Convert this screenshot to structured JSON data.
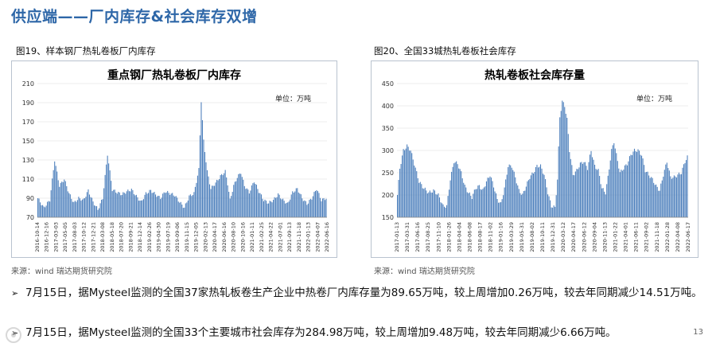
{
  "slide": {
    "title": "供应端——厂内库存&社会库存双增",
    "page_number": "13"
  },
  "left_figure": {
    "caption": "图19、样本钢厂热轧卷板厂内库存",
    "source": "来源：wind  瑞达期货研究院"
  },
  "right_figure": {
    "caption": "图20、全国33城热轧卷板社会库存",
    "source": "来源：wind  瑞达期货研究院"
  },
  "bullets": [
    "7月15日，据Mysteel监测的全国37家热轧板卷生产企业中热卷厂内库存量为89.65万吨，较上周增加0.26万吨，较去年同期减少14.51万吨。",
    "7月15日，据Mysteel监测的全国33个主要城市社会库存为284.98万吨，较上周增加9.48万吨，较去年同期减少6.66万吨。"
  ],
  "chart_data": [
    {
      "type": "bar",
      "title": "重点钢厂热轧卷板厂内库存",
      "unit_label": "单位：万吨",
      "ylim": [
        70,
        210
      ],
      "yticks": [
        70,
        90,
        110,
        130,
        150,
        170,
        190,
        210
      ],
      "grid": true,
      "bar_color": "#4f81bd",
      "x_tick_labels": [
        "2016-10-14",
        "2016-12-16",
        "2017-03-03",
        "2017-05-05",
        "2017-08-03",
        "2017-10-12",
        "2017-12-21",
        "2018-03-08",
        "2018-05-18",
        "2018-07-20",
        "2018-09-21",
        "2018-12-14",
        "2019-02-26",
        "2019-04-30",
        "2019-07-19",
        "2019-09-06",
        "2019-11-15",
        "2019-12-05",
        "2020-02-13",
        "2020-04-17",
        "2020-06-16",
        "2020-08-10",
        "2020-10-16",
        "2021-01-11",
        "2021-02-25",
        "2021-04-22",
        "2021-07-01",
        "2021-09-13",
        "2021-11-18",
        "2022-01-13",
        "2022-04-07",
        "2022-06-16"
      ],
      "anchors": [
        [
          0,
          90
        ],
        [
          5,
          80
        ],
        [
          10,
          88
        ],
        [
          14,
          130
        ],
        [
          18,
          103
        ],
        [
          22,
          110
        ],
        [
          26,
          95
        ],
        [
          30,
          85
        ],
        [
          34,
          90
        ],
        [
          38,
          88
        ],
        [
          42,
          98
        ],
        [
          46,
          86
        ],
        [
          50,
          78
        ],
        [
          54,
          90
        ],
        [
          58,
          136
        ],
        [
          62,
          99
        ],
        [
          66,
          96
        ],
        [
          70,
          94
        ],
        [
          74,
          97
        ],
        [
          78,
          99
        ],
        [
          82,
          92
        ],
        [
          86,
          86
        ],
        [
          90,
          95
        ],
        [
          94,
          98
        ],
        [
          98,
          94
        ],
        [
          102,
          90
        ],
        [
          106,
          97
        ],
        [
          110,
          95
        ],
        [
          114,
          93
        ],
        [
          118,
          86
        ],
        [
          122,
          80
        ],
        [
          126,
          92
        ],
        [
          130,
          95
        ],
        [
          134,
          120
        ],
        [
          136,
          192
        ],
        [
          138,
          150
        ],
        [
          141,
          118
        ],
        [
          144,
          100
        ],
        [
          148,
          106
        ],
        [
          152,
          113
        ],
        [
          156,
          118
        ],
        [
          158,
          105
        ],
        [
          160,
          88
        ],
        [
          163,
          103
        ],
        [
          166,
          112
        ],
        [
          169,
          117
        ],
        [
          172,
          103
        ],
        [
          176,
          96
        ],
        [
          180,
          108
        ],
        [
          184,
          97
        ],
        [
          188,
          88
        ],
        [
          192,
          85
        ],
        [
          196,
          88
        ],
        [
          200,
          94
        ],
        [
          204,
          88
        ],
        [
          208,
          84
        ],
        [
          212,
          96
        ],
        [
          216,
          100
        ],
        [
          220,
          90
        ],
        [
          224,
          84
        ],
        [
          228,
          90
        ],
        [
          232,
          100
        ],
        [
          236,
          88
        ],
        [
          240,
          90
        ]
      ],
      "n_bars": 241
    },
    {
      "type": "bar",
      "title": "热轧卷板社会库存量",
      "unit_label": "单位：万吨",
      "ylim": [
        150,
        450
      ],
      "yticks": [
        150,
        200,
        250,
        300,
        350,
        400,
        450
      ],
      "grid": true,
      "bar_color": "#4f81bd",
      "x_tick_labels": [
        "2017-01-13",
        "2017-03-31",
        "2017-06-16",
        "2017-08-25",
        "2017-11-10",
        "2018-01-26",
        "2018-04-04",
        "2018-06-08",
        "2018-08-17",
        "2018-11-02",
        "2019-01-16",
        "2019-03-29",
        "2019-05-31",
        "2019-08-02",
        "2019-10-11",
        "2019-12-31",
        "2020-03-12",
        "2020-04-17",
        "2020-06-12",
        "2020-09-04",
        "2020-11-13",
        "2021-01-22",
        "2021-04-01",
        "2021-06-11",
        "2021-09-02",
        "2021-11-18",
        "2022-01-28",
        "2022-04-08",
        "2022-06-17"
      ],
      "anchors": [
        [
          0,
          200
        ],
        [
          2,
          260
        ],
        [
          5,
          300
        ],
        [
          8,
          310
        ],
        [
          11,
          300
        ],
        [
          14,
          270
        ],
        [
          18,
          230
        ],
        [
          22,
          215
        ],
        [
          26,
          205
        ],
        [
          30,
          210
        ],
        [
          34,
          200
        ],
        [
          38,
          175
        ],
        [
          41,
          175
        ],
        [
          44,
          235
        ],
        [
          47,
          275
        ],
        [
          50,
          270
        ],
        [
          53,
          250
        ],
        [
          56,
          220
        ],
        [
          59,
          205
        ],
        [
          62,
          195
        ],
        [
          65,
          215
        ],
        [
          68,
          220
        ],
        [
          71,
          210
        ],
        [
          74,
          230
        ],
        [
          77,
          245
        ],
        [
          80,
          220
        ],
        [
          83,
          190
        ],
        [
          86,
          180
        ],
        [
          89,
          215
        ],
        [
          92,
          265
        ],
        [
          95,
          265
        ],
        [
          98,
          240
        ],
        [
          101,
          210
        ],
        [
          104,
          200
        ],
        [
          107,
          220
        ],
        [
          110,
          240
        ],
        [
          113,
          250
        ],
        [
          116,
          265
        ],
        [
          119,
          265
        ],
        [
          122,
          245
        ],
        [
          125,
          205
        ],
        [
          128,
          175
        ],
        [
          131,
          172
        ],
        [
          133,
          235
        ],
        [
          135,
          375
        ],
        [
          137,
          410
        ],
        [
          139,
          400
        ],
        [
          141,
          370
        ],
        [
          143,
          300
        ],
        [
          146,
          245
        ],
        [
          149,
          255
        ],
        [
          152,
          270
        ],
        [
          155,
          275
        ],
        [
          158,
          260
        ],
        [
          161,
          300
        ],
        [
          164,
          265
        ],
        [
          167,
          255
        ],
        [
          170,
          215
        ],
        [
          173,
          205
        ],
        [
          175,
          240
        ],
        [
          178,
          300
        ],
        [
          180,
          320
        ],
        [
          182,
          290
        ],
        [
          185,
          250
        ],
        [
          188,
          260
        ],
        [
          191,
          270
        ],
        [
          194,
          290
        ],
        [
          197,
          300
        ],
        [
          200,
          300
        ],
        [
          203,
          290
        ],
        [
          206,
          255
        ],
        [
          209,
          245
        ],
        [
          212,
          235
        ],
        [
          215,
          220
        ],
        [
          218,
          210
        ],
        [
          221,
          245
        ],
        [
          224,
          275
        ],
        [
          227,
          240
        ],
        [
          230,
          240
        ],
        [
          233,
          245
        ],
        [
          236,
          250
        ],
        [
          239,
          275
        ],
        [
          241,
          285
        ]
      ],
      "n_bars": 242
    }
  ]
}
